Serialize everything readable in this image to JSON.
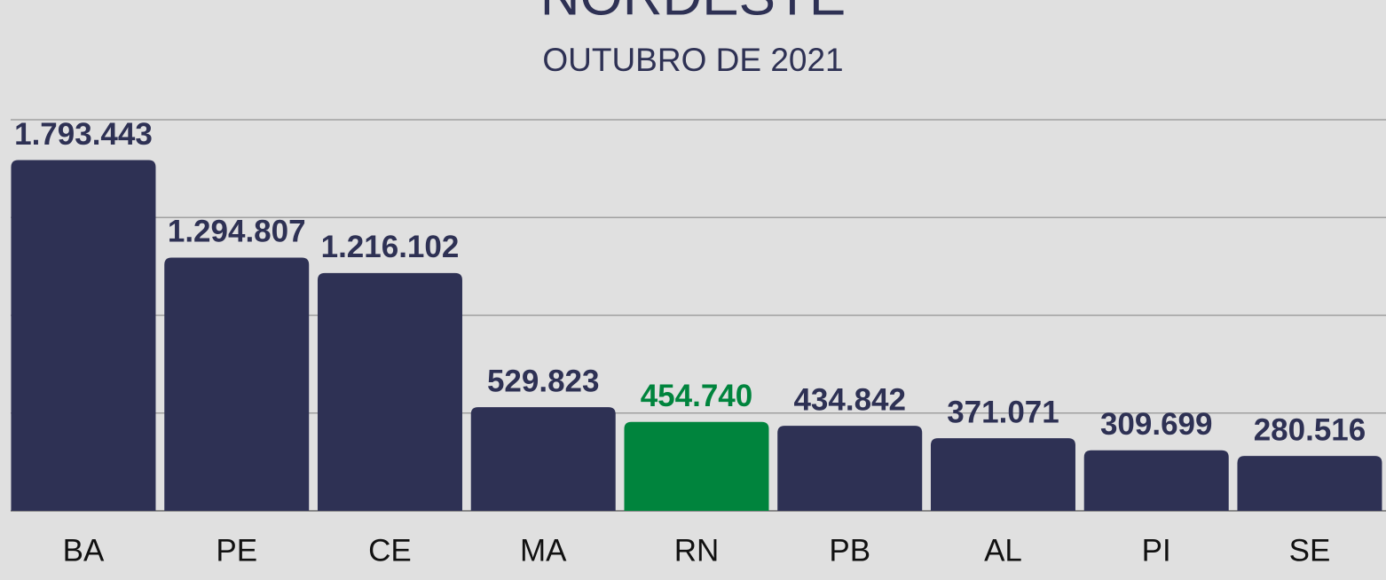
{
  "chart_data": {
    "type": "bar",
    "title": "NORDESTE",
    "subtitle": "OUTUBRO DE 2021",
    "categories": [
      "BA",
      "PE",
      "CE",
      "MA",
      "RN",
      "PB",
      "AL",
      "PI",
      "SE"
    ],
    "values": [
      1793443,
      1294807,
      1216102,
      529823,
      454740,
      434842,
      371071,
      309699,
      280516
    ],
    "value_labels": [
      "1.793.443",
      "1.294.807",
      "1.216.102",
      "529.823",
      "454.740",
      "434.842",
      "371.071",
      "309.699",
      "280.516"
    ],
    "colors": [
      "#2e3154",
      "#2e3154",
      "#2e3154",
      "#2e3154",
      "#00843d",
      "#2e3154",
      "#2e3154",
      "#2e3154",
      "#2e3154"
    ],
    "ylim": [
      0,
      2000000
    ],
    "yticks": [
      0,
      500000,
      1000000,
      1500000,
      2000000
    ],
    "grid": true
  }
}
